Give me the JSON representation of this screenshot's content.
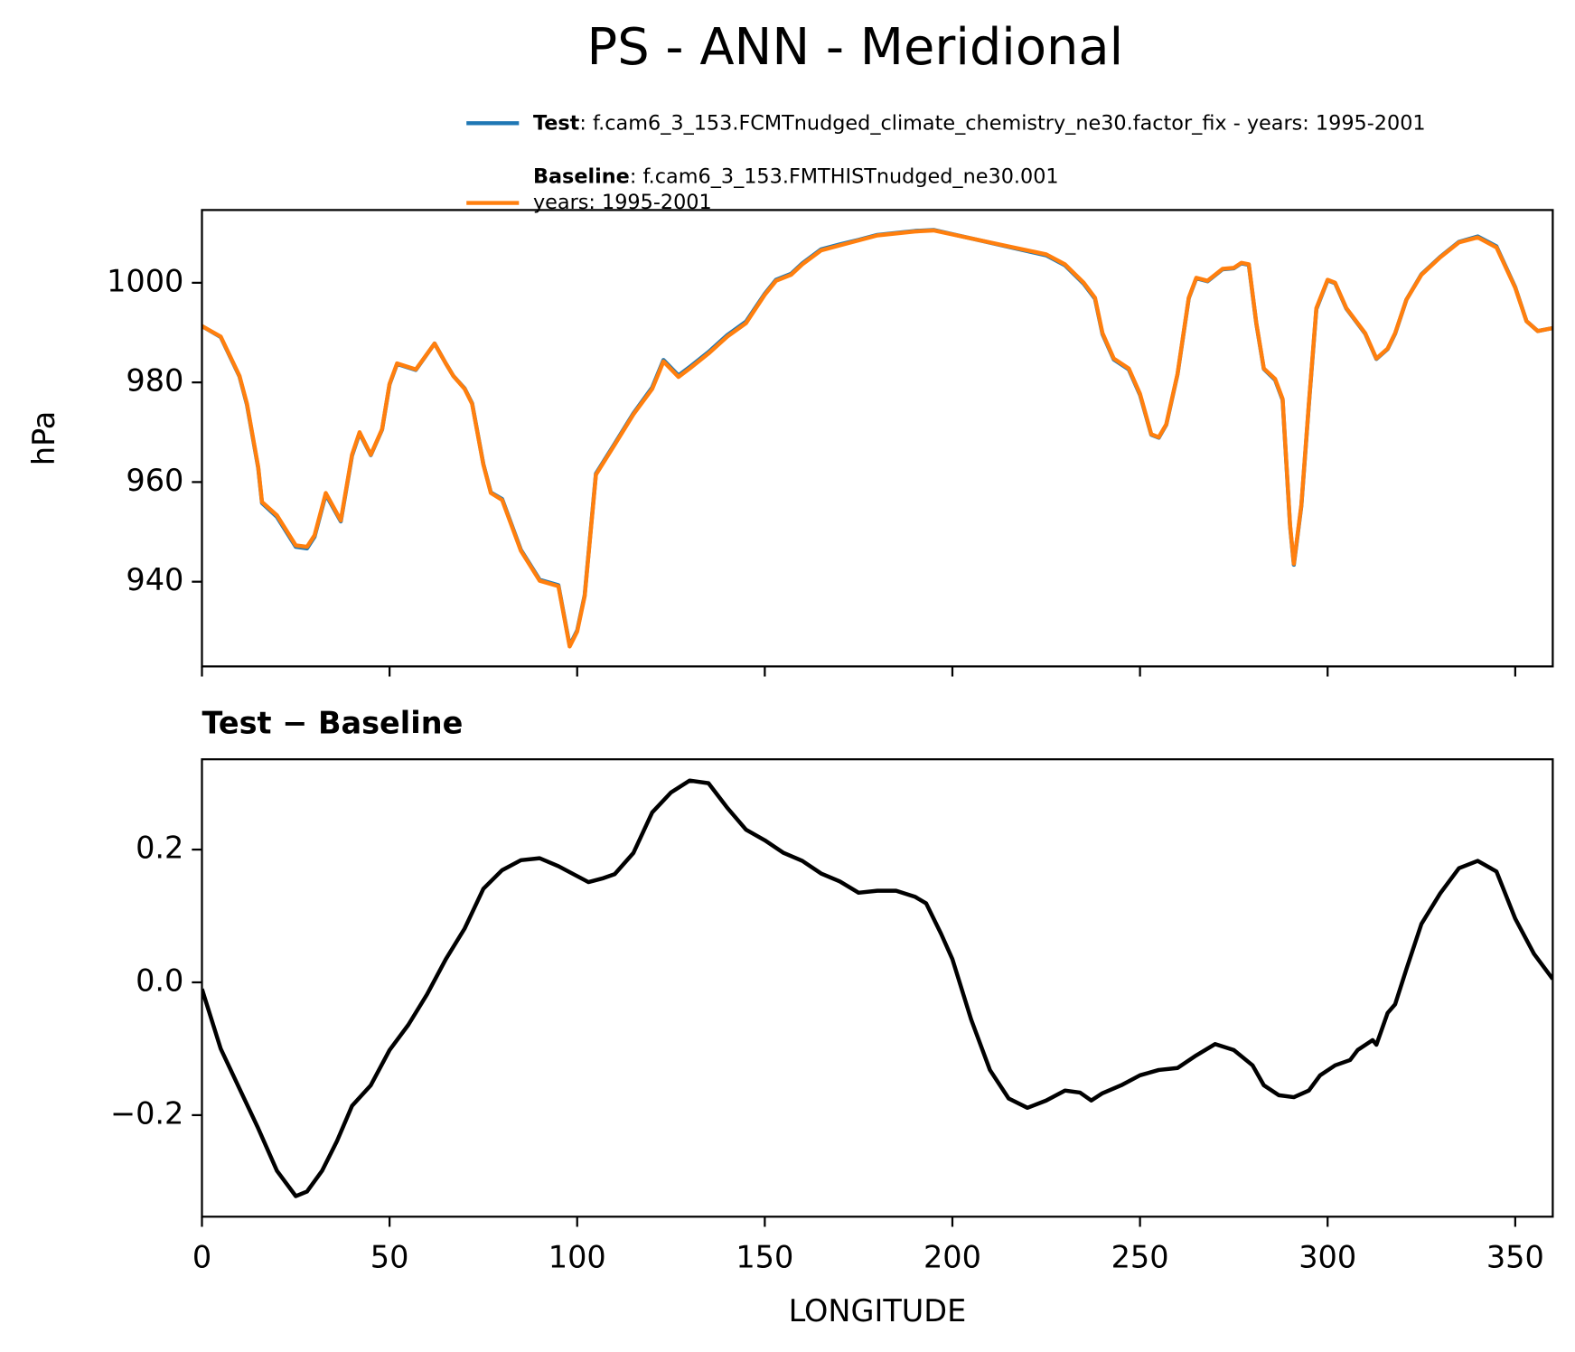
{
  "chart_data": [
    {
      "type": "line",
      "title": "PS - ANN - Meridional",
      "ylabel": "hPa",
      "xlim": [
        0,
        360
      ],
      "xticks": [
        0,
        50,
        100,
        150,
        200,
        250,
        300,
        350
      ],
      "xticklabels": false,
      "ylim": [
        923,
        1014.6
      ],
      "yticks": [
        940,
        960,
        980,
        1000
      ],
      "x": [
        0,
        5,
        10,
        12,
        15,
        16,
        20,
        25,
        28,
        30,
        33,
        37,
        40,
        42,
        45,
        48,
        50,
        52,
        57,
        62,
        65,
        67,
        70,
        72,
        75,
        77,
        80,
        85,
        90,
        95,
        98,
        100,
        102,
        105,
        110,
        115,
        120,
        123,
        127,
        130,
        135,
        140,
        145,
        150,
        153,
        157,
        160,
        165,
        170,
        175,
        180,
        190,
        195,
        205,
        215,
        225,
        230,
        235,
        238,
        240,
        243,
        247,
        250,
        253,
        255,
        257,
        260,
        263,
        265,
        268,
        272,
        275,
        277,
        279,
        281,
        283,
        286,
        288,
        290,
        291,
        293,
        295,
        297,
        300,
        302,
        305,
        310,
        313,
        316,
        318,
        321,
        325,
        330,
        335,
        340,
        345,
        350,
        353,
        356,
        360
      ],
      "series": [
        {
          "name": "Test",
          "description": [
            ": f.cam6_3_153.FCMTnudged_climate_chemistry_ne30.factor_fix - years: 1995-2001"
          ],
          "color": "#1f77b4",
          "values": [
            991.3,
            989.1,
            981.2,
            975.5,
            962.8,
            955.8,
            953.0,
            947.0,
            946.7,
            949.0,
            957.5,
            952.1,
            965.3,
            969.8,
            965.4,
            970.5,
            979.6,
            983.7,
            982.5,
            987.8,
            983.8,
            981.3,
            978.8,
            975.8,
            963.6,
            957.9,
            956.6,
            946.4,
            940.4,
            939.3,
            927.2,
            930.2,
            937.3,
            961.7,
            967.7,
            973.8,
            979.0,
            984.5,
            981.4,
            983.1,
            986.1,
            989.5,
            992.2,
            997.8,
            1000.6,
            1001.8,
            1003.9,
            1006.7,
            1007.7,
            1008.6,
            1009.6,
            1010.4,
            1010.6,
            1008.9,
            1007.2,
            1005.5,
            1003.5,
            999.8,
            996.8,
            989.7,
            984.6,
            982.6,
            977.5,
            969.5,
            968.9,
            971.5,
            981.6,
            996.9,
            1000.9,
            1000.3,
            1002.7,
            1002.9,
            1003.9,
            1003.6,
            991.8,
            982.7,
            980.5,
            976.5,
            951.1,
            943.4,
            955.2,
            975.5,
            994.7,
            1000.5,
            999.9,
            994.8,
            989.8,
            984.7,
            986.7,
            989.8,
            996.6,
            1001.7,
            1005.2,
            1008.2,
            1009.3,
            1007.3,
            999.1,
            992.3,
            990.3,
            990.9
          ]
        },
        {
          "name": "Baseline",
          "description": [
            ": f.cam6_3_153.FMTHISTnudged_ne30.001",
            "years: 1995-2001"
          ],
          "color": "#ff7f0e",
          "values": [
            991.3,
            989.2,
            981.3,
            975.7,
            963.0,
            956.0,
            953.3,
            947.3,
            947.0,
            949.3,
            957.8,
            952.3,
            965.5,
            970.0,
            965.5,
            970.6,
            979.7,
            983.8,
            982.6,
            987.8,
            983.8,
            981.3,
            978.7,
            975.7,
            963.5,
            957.8,
            956.4,
            946.2,
            940.2,
            939.1,
            927.0,
            930.0,
            937.1,
            961.5,
            967.5,
            973.6,
            978.7,
            984.2,
            981.1,
            982.8,
            985.8,
            989.2,
            991.9,
            997.6,
            1000.4,
            1001.6,
            1003.7,
            1006.5,
            1007.5,
            1008.5,
            1009.5,
            1010.3,
            1010.5,
            1008.9,
            1007.3,
            1005.7,
            1003.7,
            1000.0,
            997.0,
            989.9,
            984.8,
            982.8,
            977.7,
            969.6,
            969.0,
            971.6,
            981.7,
            997.0,
            1001.0,
            1000.4,
            1002.8,
            1003.0,
            1004.0,
            1003.7,
            991.9,
            982.8,
            980.7,
            976.7,
            951.3,
            943.6,
            955.4,
            975.7,
            994.9,
            1000.6,
            1000.0,
            994.9,
            989.9,
            984.8,
            986.8,
            989.9,
            996.6,
            1001.6,
            1005.1,
            1008.1,
            1009.1,
            1007.1,
            999.0,
            992.3,
            990.3,
            990.9
          ]
        }
      ]
    },
    {
      "type": "line",
      "title": "Test − Baseline",
      "xlabel": "LONGITUDE",
      "xlim": [
        0,
        360
      ],
      "xticks": [
        0,
        50,
        100,
        150,
        200,
        250,
        300,
        350
      ],
      "ylim": [
        -0.353,
        0.336
      ],
      "yticks": [
        {
          "value": -0.2,
          "label": "−0.2"
        },
        {
          "value": 0.0,
          "label": "0.0"
        },
        {
          "value": 0.2,
          "label": "0.2"
        }
      ],
      "x": [
        0,
        5,
        10,
        15,
        20,
        25,
        28,
        32,
        36,
        40,
        45,
        50,
        55,
        60,
        65,
        70,
        75,
        80,
        85,
        90,
        95,
        100,
        103,
        107,
        110,
        115,
        120,
        125,
        130,
        135,
        140,
        145,
        150,
        155,
        160,
        165,
        170,
        175,
        180,
        185,
        190,
        193,
        197,
        200,
        205,
        210,
        215,
        220,
        225,
        230,
        234,
        237,
        240,
        245,
        250,
        255,
        260,
        265,
        270,
        275,
        280,
        283,
        287,
        291,
        295,
        298,
        302,
        306,
        308,
        312,
        313,
        316,
        318,
        321,
        325,
        330,
        335,
        340,
        345,
        350,
        355,
        360
      ],
      "series": [
        {
          "name": "Test − Baseline",
          "color": "#000000",
          "values": [
            -0.01,
            -0.1,
            -0.16,
            -0.22,
            -0.284,
            -0.322,
            -0.315,
            -0.284,
            -0.239,
            -0.186,
            -0.155,
            -0.102,
            -0.064,
            -0.018,
            0.035,
            0.081,
            0.141,
            0.169,
            0.184,
            0.187,
            0.175,
            0.16,
            0.151,
            0.157,
            0.163,
            0.195,
            0.256,
            0.286,
            0.304,
            0.3,
            0.263,
            0.23,
            0.214,
            0.195,
            0.183,
            0.164,
            0.152,
            0.135,
            0.138,
            0.138,
            0.129,
            0.119,
            0.073,
            0.035,
            -0.056,
            -0.132,
            -0.175,
            -0.189,
            -0.178,
            -0.163,
            -0.166,
            -0.178,
            -0.167,
            -0.155,
            -0.14,
            -0.132,
            -0.129,
            -0.11,
            -0.093,
            -0.102,
            -0.125,
            -0.155,
            -0.17,
            -0.173,
            -0.163,
            -0.14,
            -0.125,
            -0.117,
            -0.102,
            -0.087,
            -0.094,
            -0.046,
            -0.033,
            0.02,
            0.088,
            0.134,
            0.172,
            0.183,
            0.167,
            0.096,
            0.043,
            0.005
          ]
        }
      ]
    }
  ]
}
